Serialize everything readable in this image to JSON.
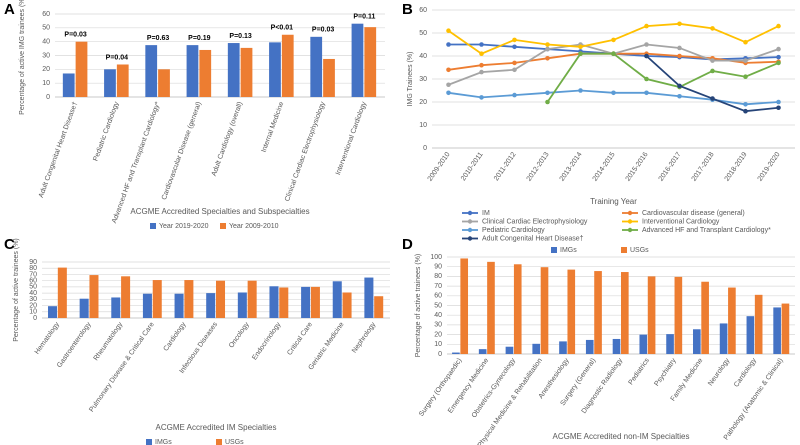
{
  "chart_data": [
    {
      "type": "bar",
      "panel_label": "A",
      "y_label": "Percentage of active IMG trainees (%)",
      "x_label": "ACGME Accredited Specialties and Subspecialties",
      "categories": [
        "Adult Congenital Heart Disease†",
        "Pediatric Cardiology",
        "Advanced HF and Transplant Cardiology*",
        "Cardiovascular Disease (general)",
        "Adult Cardiology (overall)",
        "Internal Medicine",
        "Clinical Cardiac Electrophysiology",
        "Interventional Cardiology"
      ],
      "annotations": [
        "P=0.03",
        "P=0.04",
        "P=0.63",
        "P=0.19",
        "P=0.13",
        "P<0.01",
        "P=0.03",
        "P=0.11"
      ],
      "series": [
        {
          "name": "Year 2019-2020",
          "color": "#4472c4",
          "values": [
            17,
            20,
            37.5,
            37.5,
            39,
            39.5,
            43.5,
            53
          ]
        },
        {
          "name": "Year 2009-2010",
          "color": "#ed7d31",
          "values": [
            40,
            23.5,
            20,
            34,
            35.5,
            45,
            27.5,
            50.5
          ]
        }
      ],
      "ylim": [
        0,
        60
      ],
      "yticks": [
        0,
        10,
        20,
        30,
        40,
        50,
        60
      ],
      "grid": true,
      "legend": "bottom"
    },
    {
      "type": "line",
      "panel_label": "B",
      "y_label": "IMG Trainees (%)",
      "x_label": "Training Year",
      "categories": [
        "2009-2010",
        "2010-2011",
        "2011-2012",
        "2012-2013",
        "2013-2014",
        "2014-2015",
        "2015-2016",
        "2016-2017",
        "2017-2018",
        "2018-2019",
        "2019-2020"
      ],
      "series": [
        {
          "name": "IM",
          "color": "#4472c4",
          "values": [
            45,
            45,
            44,
            43,
            42,
            41,
            40,
            39.5,
            38.5,
            39,
            39.5
          ]
        },
        {
          "name": "Cardiovascular disease (general)",
          "color": "#ed7d31",
          "values": [
            34,
            36,
            37,
            39,
            41,
            41,
            41,
            40,
            39,
            37,
            37.5
          ]
        },
        {
          "name": "Clinical Cardiac Electrophysiology",
          "color": "#a5a5a5",
          "values": [
            27.5,
            33,
            34,
            43,
            45,
            41,
            45,
            43.5,
            38,
            38,
            43
          ]
        },
        {
          "name": "Interventional Cardiology",
          "color": "#ffc000",
          "values": [
            51,
            41,
            47,
            45,
            44,
            47,
            53,
            54,
            52,
            46,
            53
          ]
        },
        {
          "name": "Pediatric Cardiology",
          "color": "#5b9bd5",
          "values": [
            24,
            22,
            23,
            24,
            25,
            24,
            24,
            22.5,
            21,
            19,
            20
          ]
        },
        {
          "name": "Advanced HF and Transplant Cardiology*",
          "color": "#70ad47",
          "values": [
            null,
            null,
            null,
            20,
            41,
            41,
            30,
            26.5,
            33.5,
            31,
            37
          ]
        },
        {
          "name": "Adult Congenital Heart Disease†",
          "color": "#264478",
          "values": [
            null,
            null,
            null,
            null,
            null,
            null,
            40,
            27,
            21.5,
            16,
            17.5
          ]
        }
      ],
      "ylim": [
        0,
        60
      ],
      "yticks": [
        0,
        10,
        20,
        30,
        40,
        50,
        60
      ],
      "grid": true,
      "legend": "bottom"
    },
    {
      "type": "bar",
      "panel_label": "C",
      "y_label": "Percentage of active trainees (%)",
      "x_label": "ACGME Accredited IM Specialties",
      "categories": [
        "Hematology",
        "Gastroenterology",
        "Rheumatology",
        "Pulmonary Disease & Critical Care",
        "Cardiology",
        "Infectious Diseases",
        "Oncology",
        "Endocrinology",
        "Critical Care",
        "Geriatric Medicine",
        "Nephrology"
      ],
      "series": [
        {
          "name": "IMGs",
          "color": "#4472c4",
          "values": [
            19,
            31,
            33,
            39,
            39,
            40,
            41,
            51,
            50,
            59,
            65
          ]
        },
        {
          "name": "USGs",
          "color": "#ed7d31",
          "values": [
            81,
            69,
            67,
            61,
            61,
            60,
            60,
            49,
            50,
            41,
            35
          ]
        }
      ],
      "ylim": [
        0,
        90
      ],
      "yticks": [
        0,
        10,
        20,
        30,
        40,
        50,
        60,
        70,
        80,
        90
      ],
      "grid": true,
      "legend": "bottom"
    },
    {
      "type": "bar",
      "panel_label": "D",
      "y_label": "Percentage of active trainees (%)",
      "x_label": "ACGME Accredited non-IM Specialties",
      "categories": [
        "Surgery (Orthopaedic)",
        "Emergency Medicine",
        "Obstetrics-Gynecology",
        "Physical Medicine & Rehabilitation",
        "Anesthesiology",
        "Surgery (General)",
        "Diagnostic Radiology",
        "Pediatrics",
        "Psychiatry",
        "Family Medicine",
        "Neurology",
        "Cardiology",
        "Pathology (Anatomic & Clinical)"
      ],
      "series": [
        {
          "name": "IMGs",
          "color": "#4472c4",
          "values": [
            1.5,
            5,
            7.5,
            10.5,
            13,
            14.5,
            15.5,
            20,
            20.5,
            25.5,
            31.5,
            39,
            48
          ]
        },
        {
          "name": "USGs",
          "color": "#ed7d31",
          "values": [
            98.5,
            95,
            92.5,
            89.5,
            87,
            85.5,
            84.5,
            80,
            79.5,
            74.5,
            68.5,
            61,
            52
          ]
        }
      ],
      "ylim": [
        0,
        100
      ],
      "yticks": [
        0,
        10,
        20,
        30,
        40,
        50,
        60,
        70,
        80,
        90,
        100
      ],
      "grid": true,
      "legend": "top"
    }
  ]
}
